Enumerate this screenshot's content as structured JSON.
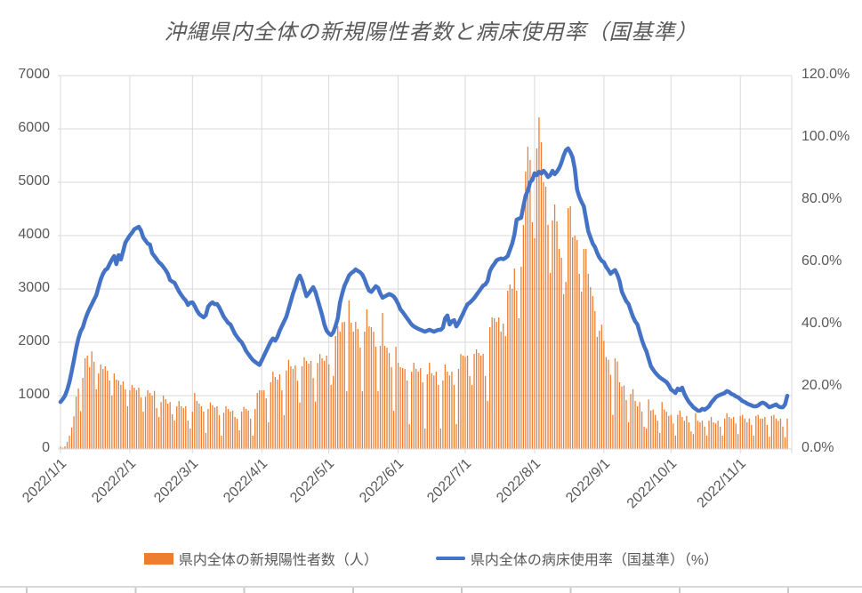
{
  "title": "沖縄県内全体の新規陽性者数と病床使用率（国基準）",
  "colors": {
    "bar": "#ED7D31",
    "line": "#4472C4",
    "text": "#595959",
    "gridline": "#D9D9D9",
    "background": "#FFFFFF"
  },
  "legend": [
    {
      "label": "県内全体の新規陽性者数（人）",
      "color": "#ED7D31",
      "type": "bar"
    },
    {
      "label": "県内全体の病床使用率（国基準）（%）",
      "color": "#4472C4",
      "type": "line"
    }
  ],
  "left_axis": {
    "ticks": [
      "0",
      "1000",
      "2000",
      "3000",
      "4000",
      "5000",
      "6000",
      "7000"
    ]
  },
  "right_axis": {
    "ticks": [
      "0.0%",
      "20.0%",
      "40.0%",
      "60.0%",
      "80.0%",
      "100.0%",
      "120.0%"
    ]
  },
  "x_axis": {
    "tick_labels": [
      "2022/1/1",
      "2022/2/1",
      "2022/3/1",
      "2022/4/1",
      "2022/5/1",
      "2022/6/1",
      "2022/7/1",
      "2022/8/1",
      "2022/9/1",
      "2022/10/1",
      "2022/11/1"
    ],
    "tick_day_indices": [
      0,
      31,
      59,
      90,
      120,
      151,
      181,
      212,
      243,
      273,
      304
    ]
  },
  "chart_data": {
    "type": "combo-bar-line",
    "title": "沖縄県内全体の新規陽性者数と病床使用率（国基準）",
    "x_start": "2022/1/1",
    "x_step": "daily",
    "x_end": "2022/11/22",
    "grid": true,
    "legend_position": "bottom",
    "left_ylim": [
      0,
      7000
    ],
    "right_ylim": [
      0,
      120
    ],
    "series": [
      {
        "name": "県内全体の新規陽性者数（人）",
        "type": "bar",
        "axis": "left",
        "color": "#ED7D31",
        "values": [
          39,
          25,
          51,
          130,
          248,
          400,
          613,
          981,
          1133,
          708,
          1333,
          1700,
          1750,
          1533,
          1829,
          1633,
          1117,
          1417,
          1583,
          1500,
          1550,
          1467,
          1283,
          1000,
          1417,
          1300,
          1283,
          1200,
          1267,
          1117,
          800,
          1100,
          1200,
          1150,
          1100,
          1150,
          967,
          700,
          980,
          1100,
          1050,
          1000,
          1090,
          767,
          600,
          880,
          1000,
          933,
          850,
          880,
          650,
          533,
          800,
          900,
          800,
          767,
          800,
          533,
          383,
          700,
          1050,
          900,
          850,
          800,
          700,
          300,
          750,
          870,
          820,
          780,
          800,
          633,
          250,
          680,
          800,
          750,
          700,
          720,
          600,
          567,
          350,
          700,
          790,
          750,
          720,
          567,
          250,
          750,
          1050,
          1100,
          1100,
          1100,
          950,
          500,
          1250,
          1450,
          1350,
          1300,
          1400,
          1100,
          633,
          1470,
          1670,
          1550,
          1500,
          1570,
          1280,
          870,
          1550,
          1720,
          1650,
          1600,
          1650,
          1330,
          890,
          1610,
          1780,
          1700,
          1650,
          1750,
          1583,
          1200,
          1367,
          2117,
          2300,
          2200,
          2375,
          2383,
          1083,
          2783,
          2367,
          2200,
          2383,
          2250,
          1900,
          1083,
          2200,
          2617,
          2300,
          2283,
          2200,
          1917,
          1083,
          1933,
          2550,
          1933,
          1900,
          1800,
          1533,
          717,
          1917,
          1617,
          1533,
          1517,
          1500,
          1283,
          467,
          1450,
          1617,
          1500,
          1450,
          1517,
          1250,
          383,
          1400,
          1617,
          1420,
          1380,
          1450,
          1200,
          383,
          1283,
          1583,
          1450,
          1380,
          1450,
          1200,
          467,
          1500,
          1780,
          1750,
          1730,
          1750,
          1367,
          1200,
          1783,
          1867,
          1800,
          1750,
          1783,
          1367,
          900,
          2283,
          2467,
          2450,
          2383,
          2467,
          2200,
          2350,
          2117,
          2967,
          3083,
          3000,
          3383,
          2967,
          2450,
          3417,
          4200,
          5200,
          5667,
          5417,
          4250,
          3950,
          5633,
          6217,
          5750,
          5000,
          4917,
          4200,
          3300,
          4283,
          4583,
          4267,
          3750,
          3583,
          2900,
          3133,
          4517,
          4550,
          3967,
          4000,
          3917,
          3283,
          2950,
          3750,
          3750,
          3283,
          3033,
          2867,
          2583,
          2100,
          2217,
          2333,
          2030,
          1720,
          1670,
          1390,
          640,
          1700,
          1640,
          1250,
          1170,
          1190,
          917,
          500,
          1030,
          1120,
          900,
          800,
          880,
          700,
          417,
          383,
          930,
          720,
          740,
          640,
          530,
          300,
          880,
          740,
          700,
          620,
          640,
          480,
          250,
          640,
          720,
          600,
          530,
          620,
          500,
          330,
          280,
          670,
          530,
          500,
          530,
          420,
          250,
          530,
          600,
          500,
          480,
          530,
          420,
          250,
          570,
          670,
          600,
          570,
          600,
          480,
          280,
          620,
          640,
          570,
          500,
          570,
          450,
          250,
          620,
          640,
          570,
          570,
          600,
          450,
          230,
          620,
          640,
          570,
          530,
          570,
          420,
          220,
          570
        ]
      },
      {
        "name": "県内全体の病床使用率（国基準）（%）",
        "type": "line",
        "axis": "right",
        "color": "#4472C4",
        "values": [
          15.1,
          16.0,
          17.1,
          19.0,
          21.5,
          24.9,
          28.5,
          32.3,
          35.5,
          37.8,
          39.1,
          41.5,
          43.5,
          45.1,
          46.5,
          48.0,
          49.4,
          52.0,
          54.5,
          56.3,
          57.5,
          58.0,
          59.5,
          60.9,
          62.0,
          59.4,
          62.3,
          60.9,
          63.5,
          66.3,
          67.5,
          68.6,
          69.5,
          70.6,
          71.0,
          71.4,
          70.2,
          68.0,
          67.0,
          66.0,
          65.7,
          62.9,
          62.0,
          61.0,
          60.0,
          59.4,
          58.5,
          57.5,
          56.3,
          54.3,
          53.8,
          53.4,
          52.0,
          50.6,
          49.5,
          48.5,
          47.7,
          46.3,
          47.0,
          47.1,
          46.0,
          44.5,
          43.4,
          42.8,
          42.3,
          43.0,
          45.7,
          46.6,
          47.1,
          46.5,
          46.6,
          45.5,
          44.0,
          42.5,
          41.5,
          40.5,
          40.0,
          38.5,
          37.0,
          36.0,
          35.0,
          34.3,
          33.0,
          31.5,
          30.5,
          29.5,
          28.6,
          28.0,
          27.5,
          27.0,
          28.5,
          30.0,
          31.5,
          33.0,
          34.5,
          35.5,
          34.8,
          36.0,
          38.0,
          39.5,
          41.0,
          42.5,
          45.0,
          47.5,
          50.0,
          52.0,
          54.5,
          55.7,
          54.0,
          51.5,
          49.1,
          50.0,
          51.0,
          52.0,
          50.5,
          48.0,
          45.5,
          43.0,
          40.0,
          38.0,
          37.1,
          36.6,
          37.5,
          39.5,
          42.0,
          47.1,
          50.0,
          52.5,
          54.0,
          55.7,
          56.5,
          57.0,
          57.7,
          57.2,
          56.8,
          56.0,
          54.5,
          52.5,
          50.9,
          50.5,
          51.4,
          52.3,
          51.8,
          50.0,
          48.6,
          49.0,
          49.4,
          49.8,
          49.5,
          49.0,
          48.0,
          46.6,
          44.9,
          44.0,
          43.0,
          42.0,
          41.0,
          40.0,
          39.4,
          39.0,
          38.6,
          38.3,
          38.0,
          37.7,
          38.0,
          38.3,
          38.0,
          37.7,
          38.0,
          38.3,
          38.3,
          39.0,
          42.0,
          42.9,
          40.0,
          41.0,
          41.4,
          39.4,
          40.5,
          42.0,
          43.5,
          45.1,
          46.5,
          47.0,
          47.7,
          48.5,
          49.5,
          50.5,
          51.5,
          52.5,
          52.9,
          54.0,
          57.1,
          58.5,
          59.5,
          60.6,
          61.0,
          61.2,
          61.0,
          61.4,
          62.0,
          64.0,
          66.0,
          69.0,
          73.7,
          74.0,
          74.3,
          78.0,
          81.4,
          83.0,
          85.7,
          86.5,
          88.6,
          88.0,
          89.1,
          88.5,
          89.4,
          88.6,
          87.4,
          88.0,
          89.4,
          88.3,
          89.1,
          90.3,
          92.0,
          94.3,
          96.0,
          96.6,
          95.4,
          93.7,
          90.0,
          83.4,
          81.0,
          79.4,
          78.0,
          74.0,
          70.0,
          68.0,
          66.0,
          64.9,
          63.0,
          61.5,
          60.5,
          60.0,
          58.5,
          57.5,
          56.3,
          57.0,
          57.5,
          56.0,
          54.0,
          50.6,
          49.0,
          47.5,
          46.6,
          44.5,
          42.5,
          41.0,
          40.0,
          37.5,
          35.0,
          33.0,
          31.4,
          29.0,
          26.6,
          25.5,
          24.5,
          23.7,
          23.0,
          22.5,
          22.0,
          21.5,
          20.5,
          19.1,
          18.6,
          18.0,
          19.4,
          18.9,
          19.7,
          17.7,
          16.3,
          15.1,
          14.3,
          13.4,
          12.9,
          12.3,
          12.3,
          12.9,
          12.6,
          13.1,
          13.7,
          14.9,
          15.7,
          16.6,
          17.1,
          17.4,
          17.7,
          18.0,
          18.6,
          18.3,
          17.7,
          17.4,
          16.9,
          16.6,
          16.0,
          15.4,
          15.1,
          14.6,
          14.3,
          14.0,
          13.7,
          13.7,
          14.0,
          14.6,
          14.9,
          14.6,
          14.0,
          13.4,
          13.7,
          14.0,
          14.3,
          13.7,
          13.4,
          13.4,
          14.3,
          17.1
        ]
      }
    ]
  }
}
